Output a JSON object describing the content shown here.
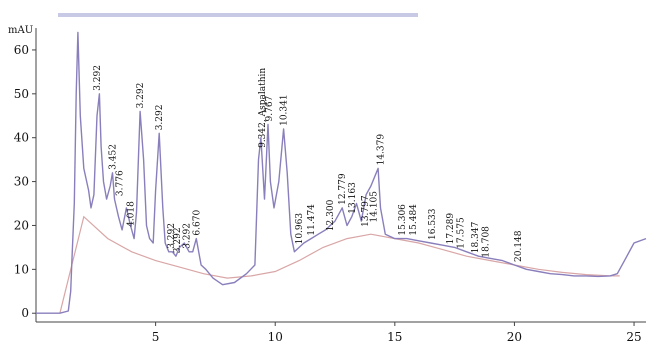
{
  "chart_data": {
    "type": "line",
    "title": "",
    "xlabel": "",
    "ylabel": "mAU",
    "xlim": [
      0,
      25.5
    ],
    "ylim": [
      -2,
      65
    ],
    "xticks": [
      5,
      10,
      15,
      20,
      25
    ],
    "yticks": [
      0,
      10,
      20,
      30,
      40,
      50,
      60
    ],
    "grid": false,
    "colors": {
      "signal": "#8a7fbc",
      "baseline": "#d9a6a6",
      "legend_strip": "#9a9fd0"
    },
    "series": [
      {
        "x": [
          -1.0,
          0.0,
          1.0,
          1.35,
          1.45,
          1.5,
          1.6,
          1.68,
          1.75,
          1.85,
          2.0,
          2.2,
          2.3,
          2.42,
          2.55,
          2.65,
          2.72,
          2.82,
          2.95,
          3.1,
          3.2,
          3.28,
          3.45,
          3.6,
          3.78,
          3.95,
          4.1,
          4.2,
          4.35,
          4.5,
          4.62,
          4.75,
          4.9,
          5.0,
          5.15,
          5.3,
          5.4,
          5.55,
          5.7,
          5.85,
          6.0,
          6.2,
          6.4,
          6.55,
          6.7,
          6.9,
          7.1,
          7.4,
          7.8,
          8.3,
          8.8,
          9.15,
          9.3,
          9.4,
          9.55,
          9.7,
          9.8,
          9.95,
          10.15,
          10.35,
          10.5,
          10.65,
          10.8,
          11.0,
          11.2,
          11.5,
          11.8,
          12.1,
          12.5,
          12.8,
          13.0,
          13.2,
          13.4,
          13.6,
          13.8,
          14.0,
          14.15,
          14.3,
          14.4,
          14.6,
          15.0,
          15.5,
          16.0,
          16.5,
          17.0,
          17.5,
          18.0,
          18.5,
          19.0,
          19.5,
          20.0,
          20.5,
          21.0,
          21.5,
          22.0,
          22.5,
          23.0,
          23.5,
          24.0,
          24.3,
          24.6,
          25.0,
          25.5
        ],
        "y": [
          0,
          0,
          0,
          0.5,
          5,
          12,
          25,
          50,
          64,
          45,
          33,
          28,
          24,
          27,
          45,
          50,
          38,
          30,
          26,
          29,
          32,
          26,
          22,
          19,
          24,
          20,
          17,
          23,
          46,
          35,
          20,
          17,
          16,
          28,
          41,
          24,
          16,
          14,
          14,
          13,
          15,
          16,
          14,
          14,
          17,
          11,
          10,
          8,
          6.5,
          7,
          9,
          11,
          35,
          40,
          26,
          43,
          30,
          24,
          30,
          42,
          32,
          18,
          14,
          15,
          16,
          17,
          18,
          19,
          21,
          24,
          20,
          22,
          25,
          21,
          27,
          29,
          31,
          33,
          24,
          18,
          17,
          17,
          16.5,
          16,
          15.5,
          15,
          14,
          13,
          12.5,
          12,
          11,
          10,
          9.5,
          9,
          8.8,
          8.5,
          8.5,
          8.4,
          8.5,
          9,
          12,
          16,
          17
        ]
      }
    ],
    "baseline": {
      "x": [
        1.0,
        2.0,
        3.0,
        4.0,
        5.0,
        6.0,
        7.0,
        8.0,
        9.0,
        10.0,
        11.0,
        12.0,
        13.0,
        14.0,
        15.0,
        16.0,
        17.0,
        18.0,
        19.0,
        20.0,
        21.0,
        22.0,
        23.0,
        24.0,
        24.4
      ],
      "y": [
        0,
        22,
        17,
        14,
        12,
        10.5,
        9,
        8,
        8.5,
        9.5,
        12,
        15,
        17,
        18,
        17,
        16,
        14.5,
        13,
        12,
        11,
        10,
        9.3,
        8.8,
        8.5,
        8.5
      ]
    },
    "peak_labels": [
      {
        "text": "3.292",
        "x": 2.55,
        "y": 50
      },
      {
        "text": "3.452",
        "x": 3.2,
        "y": 32
      },
      {
        "text": "3.776",
        "x": 3.5,
        "y": 26
      },
      {
        "text": "4.018",
        "x": 3.95,
        "y": 19
      },
      {
        "text": "3.292",
        "x": 4.35,
        "y": 46
      },
      {
        "text": "3.292",
        "x": 5.15,
        "y": 41
      },
      {
        "text": "3.292",
        "x": 5.65,
        "y": 14
      },
      {
        "text": "3.292",
        "x": 5.9,
        "y": 13
      },
      {
        "text": "3.292",
        "x": 6.3,
        "y": 14
      },
      {
        "text": "6.670",
        "x": 6.7,
        "y": 17
      },
      {
        "text": "9.342, Aspalathin",
        "x": 9.45,
        "y": 37
      },
      {
        "text": "9.767",
        "x": 9.75,
        "y": 43
      },
      {
        "text": "10.341",
        "x": 10.35,
        "y": 42
      },
      {
        "text": "10.963",
        "x": 11.0,
        "y": 15
      },
      {
        "text": "11.474",
        "x": 11.5,
        "y": 17
      },
      {
        "text": "12.300",
        "x": 12.3,
        "y": 18
      },
      {
        "text": "12.779",
        "x": 12.8,
        "y": 24
      },
      {
        "text": "13.163",
        "x": 13.2,
        "y": 22
      },
      {
        "text": "13.797",
        "x": 13.75,
        "y": 19
      },
      {
        "text": "14.105",
        "x": 14.1,
        "y": 20
      },
      {
        "text": "14.379",
        "x": 14.4,
        "y": 33
      },
      {
        "text": "15.306",
        "x": 15.3,
        "y": 17
      },
      {
        "text": "15.484",
        "x": 15.75,
        "y": 17
      },
      {
        "text": "16.533",
        "x": 16.55,
        "y": 16
      },
      {
        "text": "17.289",
        "x": 17.3,
        "y": 15
      },
      {
        "text": "17.575",
        "x": 17.75,
        "y": 14
      },
      {
        "text": "18.347",
        "x": 18.35,
        "y": 13
      },
      {
        "text": "18.708",
        "x": 18.8,
        "y": 12
      },
      {
        "text": "20.148",
        "x": 20.15,
        "y": 11
      }
    ]
  }
}
